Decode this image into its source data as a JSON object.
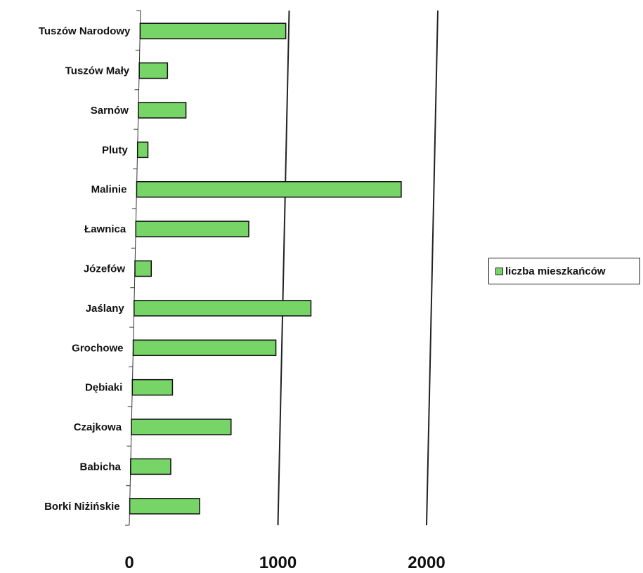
{
  "chart_data": {
    "type": "bar",
    "orientation": "horizontal",
    "categories": [
      "Tuszów Narodowy",
      "Tuszów Mały",
      "Sarnów",
      "Pluty",
      "Malinie",
      "Ławnica",
      "Józefów",
      "Jaślany",
      "Grochowe",
      "Dębiaki",
      "Czajkowa",
      "Babicha",
      "Borki Niżińskie"
    ],
    "series": [
      {
        "name": "liczba mieszkańców",
        "color": "#77d466",
        "values": [
          980,
          190,
          320,
          70,
          1780,
          760,
          110,
          1190,
          960,
          270,
          670,
          270,
          470
        ]
      }
    ],
    "x_ticks": [
      "0",
      "1000",
      "2000"
    ],
    "xlim": [
      0,
      2000
    ],
    "grid": "vertical gridlines at each major tick",
    "legend_position": "right"
  },
  "legend": {
    "label": "liczba mieszkańców",
    "swatch_color": "#77d466"
  }
}
